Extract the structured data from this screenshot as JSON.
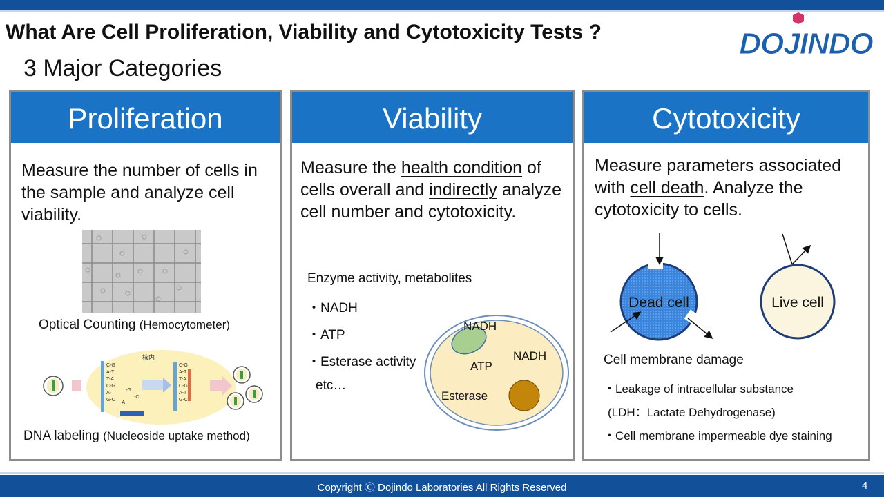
{
  "header": {
    "title": "What Are Cell Proliferation, Viability and Cytotoxicity Tests ?",
    "subtitle": "3 Major Categories",
    "logo_text": "DOJINDO",
    "logo_color": "#1a5fb0",
    "logo_accent": "#d6336c"
  },
  "panels": {
    "proliferation": {
      "heading": "Proliferation",
      "desc": {
        "p1": "Measure ",
        "u1": "the number",
        "p2": " of cells in the sample and analyze cell viability."
      },
      "optical_label": "Optical Counting ",
      "optical_sub": "(Hemocytometer)",
      "nucleus_label": "核内",
      "dna_label": "DNA labeling ",
      "dna_sub": "(Nucleoside uptake method)"
    },
    "viability": {
      "heading": "Viability",
      "desc": {
        "p1": "Measure the ",
        "u1": "health condition",
        "p2": " of cells overall and ",
        "u2": "indirectly",
        "p3": " analyze cell number and cytotoxicity."
      },
      "list_title": "Enzyme activity, metabolites",
      "items": [
        "・NADH",
        "・ATP",
        "・Esterase activity"
      ],
      "etc": "etc…",
      "cell_labels": {
        "nadh1": "NADH",
        "atp": "ATP",
        "nadh2": "NADH",
        "esterase": "Esterase"
      }
    },
    "cytotoxicity": {
      "heading": "Cytotoxicity",
      "desc": {
        "p1": "Measure parameters associated with ",
        "u1": "cell death",
        "p2": ". Analyze the cytotoxicity to cells."
      },
      "dead_label": "Dead cell",
      "live_label": "Live cell",
      "damage_title": "Cell membrane damage",
      "items": [
        "・Leakage of intracellular substance",
        " (LDH：Lactate Dehydrogenase)",
        "・Cell membrane impermeable dye staining"
      ]
    }
  },
  "footer": {
    "copyright": "Copyright Ⓒ Dojindo Laboratories All Rights Reserved",
    "page": "4"
  },
  "colors": {
    "header_blue": "#1b73c5",
    "bar_blue": "#12509a"
  }
}
